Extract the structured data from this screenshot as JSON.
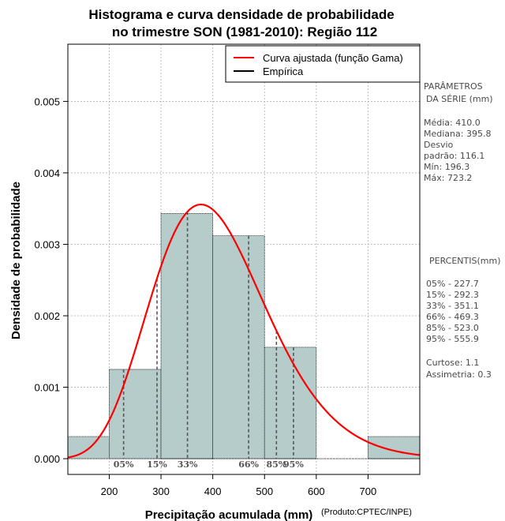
{
  "chart_data": {
    "type": "histogram",
    "title_line1": "Histograma e curva densidade de probabilidade",
    "title_line2": "no trimestre SON (1981-2010): Região 112",
    "xlabel": "Precipitação acumulada (mm)",
    "ylabel": "Densidade de probabilidade",
    "credit": "(Produto:CPTEC/INPE)",
    "xlim": [
      120,
      800
    ],
    "ylim": [
      -0.00022,
      0.0058
    ],
    "x_ticks": [
      200,
      300,
      400,
      500,
      600,
      700
    ],
    "y_ticks": [
      0.0,
      0.001,
      0.002,
      0.003,
      0.004,
      0.005
    ],
    "y_tick_labels": [
      "0.000",
      "0.001",
      "0.002",
      "0.003",
      "0.004",
      "0.005"
    ],
    "bins": [
      {
        "x0": 100,
        "x1": 200,
        "density": 0.00031
      },
      {
        "x0": 200,
        "x1": 300,
        "density": 0.00125
      },
      {
        "x0": 300,
        "x1": 400,
        "density": 0.00343
      },
      {
        "x0": 400,
        "x1": 500,
        "density": 0.00312
      },
      {
        "x0": 500,
        "x1": 600,
        "density": 0.00156
      },
      {
        "x0": 600,
        "x1": 700,
        "density": 0
      },
      {
        "x0": 700,
        "x1": 800,
        "density": 0.00031
      }
    ],
    "gamma_curve": {
      "mean": 410.0,
      "sd": 116.1
    },
    "percentile_lines": [
      {
        "label": "05%",
        "value": 227.7
      },
      {
        "label": "15%",
        "value": 292.3
      },
      {
        "label": "33%",
        "value": 351.1
      },
      {
        "label": "66%",
        "value": 469.3
      },
      {
        "label": "85%",
        "value": 523.0
      },
      {
        "label": "95%",
        "value": 555.9
      }
    ],
    "legend": [
      {
        "label": "Curva ajustada (função Gama)",
        "color": "#ff0000"
      },
      {
        "label": "Empírica",
        "color": "#000000"
      }
    ],
    "colors": {
      "bar_fill": "#b5cccb",
      "curve": "#ff0000",
      "grid": "#b0b0b0"
    }
  },
  "stats_panel": {
    "header_line1": "PARÂMETROS",
    "header_line2": "DA SÉRIE (mm)",
    "lines": [
      "Média:  410.0",
      "Mediana:  395.8",
      "Desvio",
      "padrão:  116.1",
      "Mín:  196.3",
      "Máx:  723.2"
    ]
  },
  "percentile_panel": {
    "header": "PERCENTIS(mm)",
    "lines": [
      "05% -  227.7",
      "15% -  292.3",
      "33% -  351.1",
      "66% -  469.3",
      "85% -  523.0",
      "95% -  555.9"
    ]
  },
  "shape_panel": {
    "lines": [
      "Curtose:  1.1",
      "Assimetria:  0.3"
    ]
  }
}
